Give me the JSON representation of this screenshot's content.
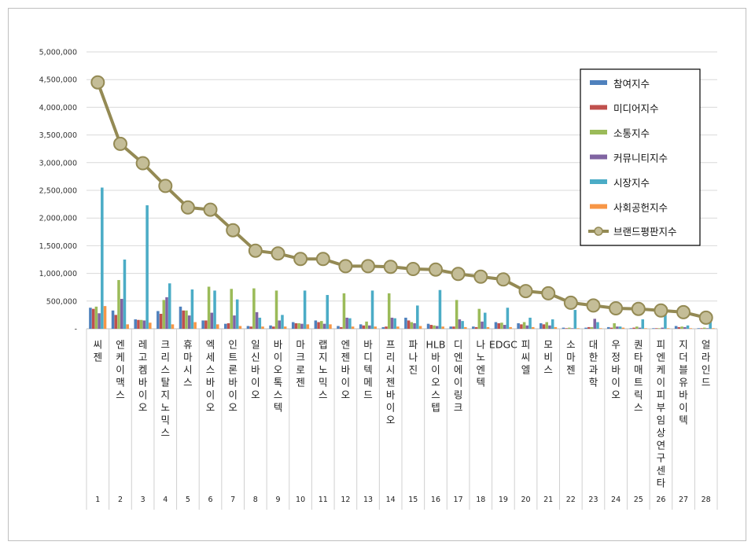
{
  "chart_data": {
    "type": "bar",
    "title": "",
    "xlabel": "",
    "ylabel": "",
    "ylim": [
      0,
      5000000
    ],
    "yticks": [
      0,
      500000,
      1000000,
      1500000,
      2000000,
      2500000,
      3000000,
      3500000,
      4000000,
      4500000,
      5000000
    ],
    "ytick_labels": [
      "-",
      "500,000",
      "1,000,000",
      "1,500,000",
      "2,000,000",
      "2,500,000",
      "3,000,000",
      "3,500,000",
      "4,000,000",
      "4,500,000",
      "5,000,000"
    ],
    "grid": true,
    "legend_position": "top-right",
    "ranks": [
      "1",
      "2",
      "3",
      "4",
      "5",
      "6",
      "7",
      "8",
      "9",
      "10",
      "11",
      "12",
      "13",
      "14",
      "15",
      "16",
      "17",
      "18",
      "19",
      "20",
      "21",
      "22",
      "23",
      "24",
      "25",
      "26",
      "27",
      "28"
    ],
    "categories": [
      "씨젠",
      "엔케이맥스",
      "레고켐바이오",
      "크리스탈지노믹스",
      "휴마시스",
      "엑세스바이오",
      "인트론바이오",
      "일신바이오",
      "바이오톡스텍",
      "마크로젠",
      "랩지노믹스",
      "엔젠바이오",
      "바디텍메드",
      "프리시젠바이오",
      "파나진",
      "HLB바이오스텝",
      "디엔에이링크",
      "나노엔텍",
      "EDGC",
      "피씨엘",
      "모비스",
      "소마젠",
      "대한과학",
      "우정바이오",
      "퀀타매트릭스",
      "피엔케이피부임상연구센타",
      "지더블유바이텍",
      "얼라인드"
    ],
    "series": [
      {
        "name": "참여지수",
        "color": "#4f81bd",
        "values": [
          380000,
          330000,
          170000,
          320000,
          400000,
          150000,
          90000,
          50000,
          60000,
          120000,
          150000,
          50000,
          80000,
          30000,
          200000,
          90000,
          40000,
          40000,
          120000,
          100000,
          100000,
          20000,
          20000,
          30000,
          10000,
          10000,
          50000,
          10000
        ]
      },
      {
        "name": "미디어지수",
        "color": "#c0504d",
        "values": [
          360000,
          250000,
          160000,
          270000,
          330000,
          150000,
          100000,
          40000,
          40000,
          100000,
          120000,
          30000,
          60000,
          40000,
          150000,
          70000,
          40000,
          30000,
          100000,
          80000,
          80000,
          10000,
          30000,
          20000,
          20000,
          10000,
          30000,
          10000
        ]
      },
      {
        "name": "소통지수",
        "color": "#9bbb59",
        "values": [
          400000,
          880000,
          160000,
          520000,
          330000,
          760000,
          720000,
          730000,
          690000,
          100000,
          140000,
          640000,
          130000,
          640000,
          120000,
          60000,
          520000,
          360000,
          110000,
          120000,
          120000,
          20000,
          30000,
          100000,
          40000,
          10000,
          40000,
          20000
        ]
      },
      {
        "name": "커뮤니티지수",
        "color": "#8064a2",
        "values": [
          280000,
          540000,
          150000,
          570000,
          240000,
          290000,
          240000,
          300000,
          150000,
          90000,
          90000,
          200000,
          60000,
          200000,
          100000,
          50000,
          170000,
          130000,
          70000,
          60000,
          60000,
          10000,
          180000,
          40000,
          20000,
          20000,
          30000,
          10000
        ]
      },
      {
        "name": "시장지수",
        "color": "#4bacc6",
        "values": [
          2550000,
          1250000,
          2230000,
          820000,
          710000,
          690000,
          530000,
          200000,
          250000,
          690000,
          610000,
          190000,
          690000,
          190000,
          420000,
          700000,
          140000,
          290000,
          380000,
          200000,
          170000,
          340000,
          120000,
          40000,
          170000,
          260000,
          60000,
          180000
        ]
      },
      {
        "name": "사회공헌지수",
        "color": "#f79646",
        "values": [
          410000,
          80000,
          110000,
          80000,
          120000,
          80000,
          50000,
          40000,
          40000,
          80000,
          80000,
          40000,
          40000,
          40000,
          50000,
          40000,
          30000,
          30000,
          30000,
          30000,
          30000,
          10000,
          10000,
          20000,
          10000,
          10000,
          10000,
          10000
        ]
      }
    ],
    "line": {
      "name": "브랜드평판지수",
      "color": "#948a54",
      "values": [
        4450000,
        3340000,
        2990000,
        2580000,
        2190000,
        2150000,
        1780000,
        1410000,
        1360000,
        1260000,
        1260000,
        1130000,
        1130000,
        1120000,
        1080000,
        1070000,
        990000,
        940000,
        890000,
        680000,
        640000,
        470000,
        420000,
        370000,
        360000,
        330000,
        300000,
        200000
      ]
    }
  }
}
